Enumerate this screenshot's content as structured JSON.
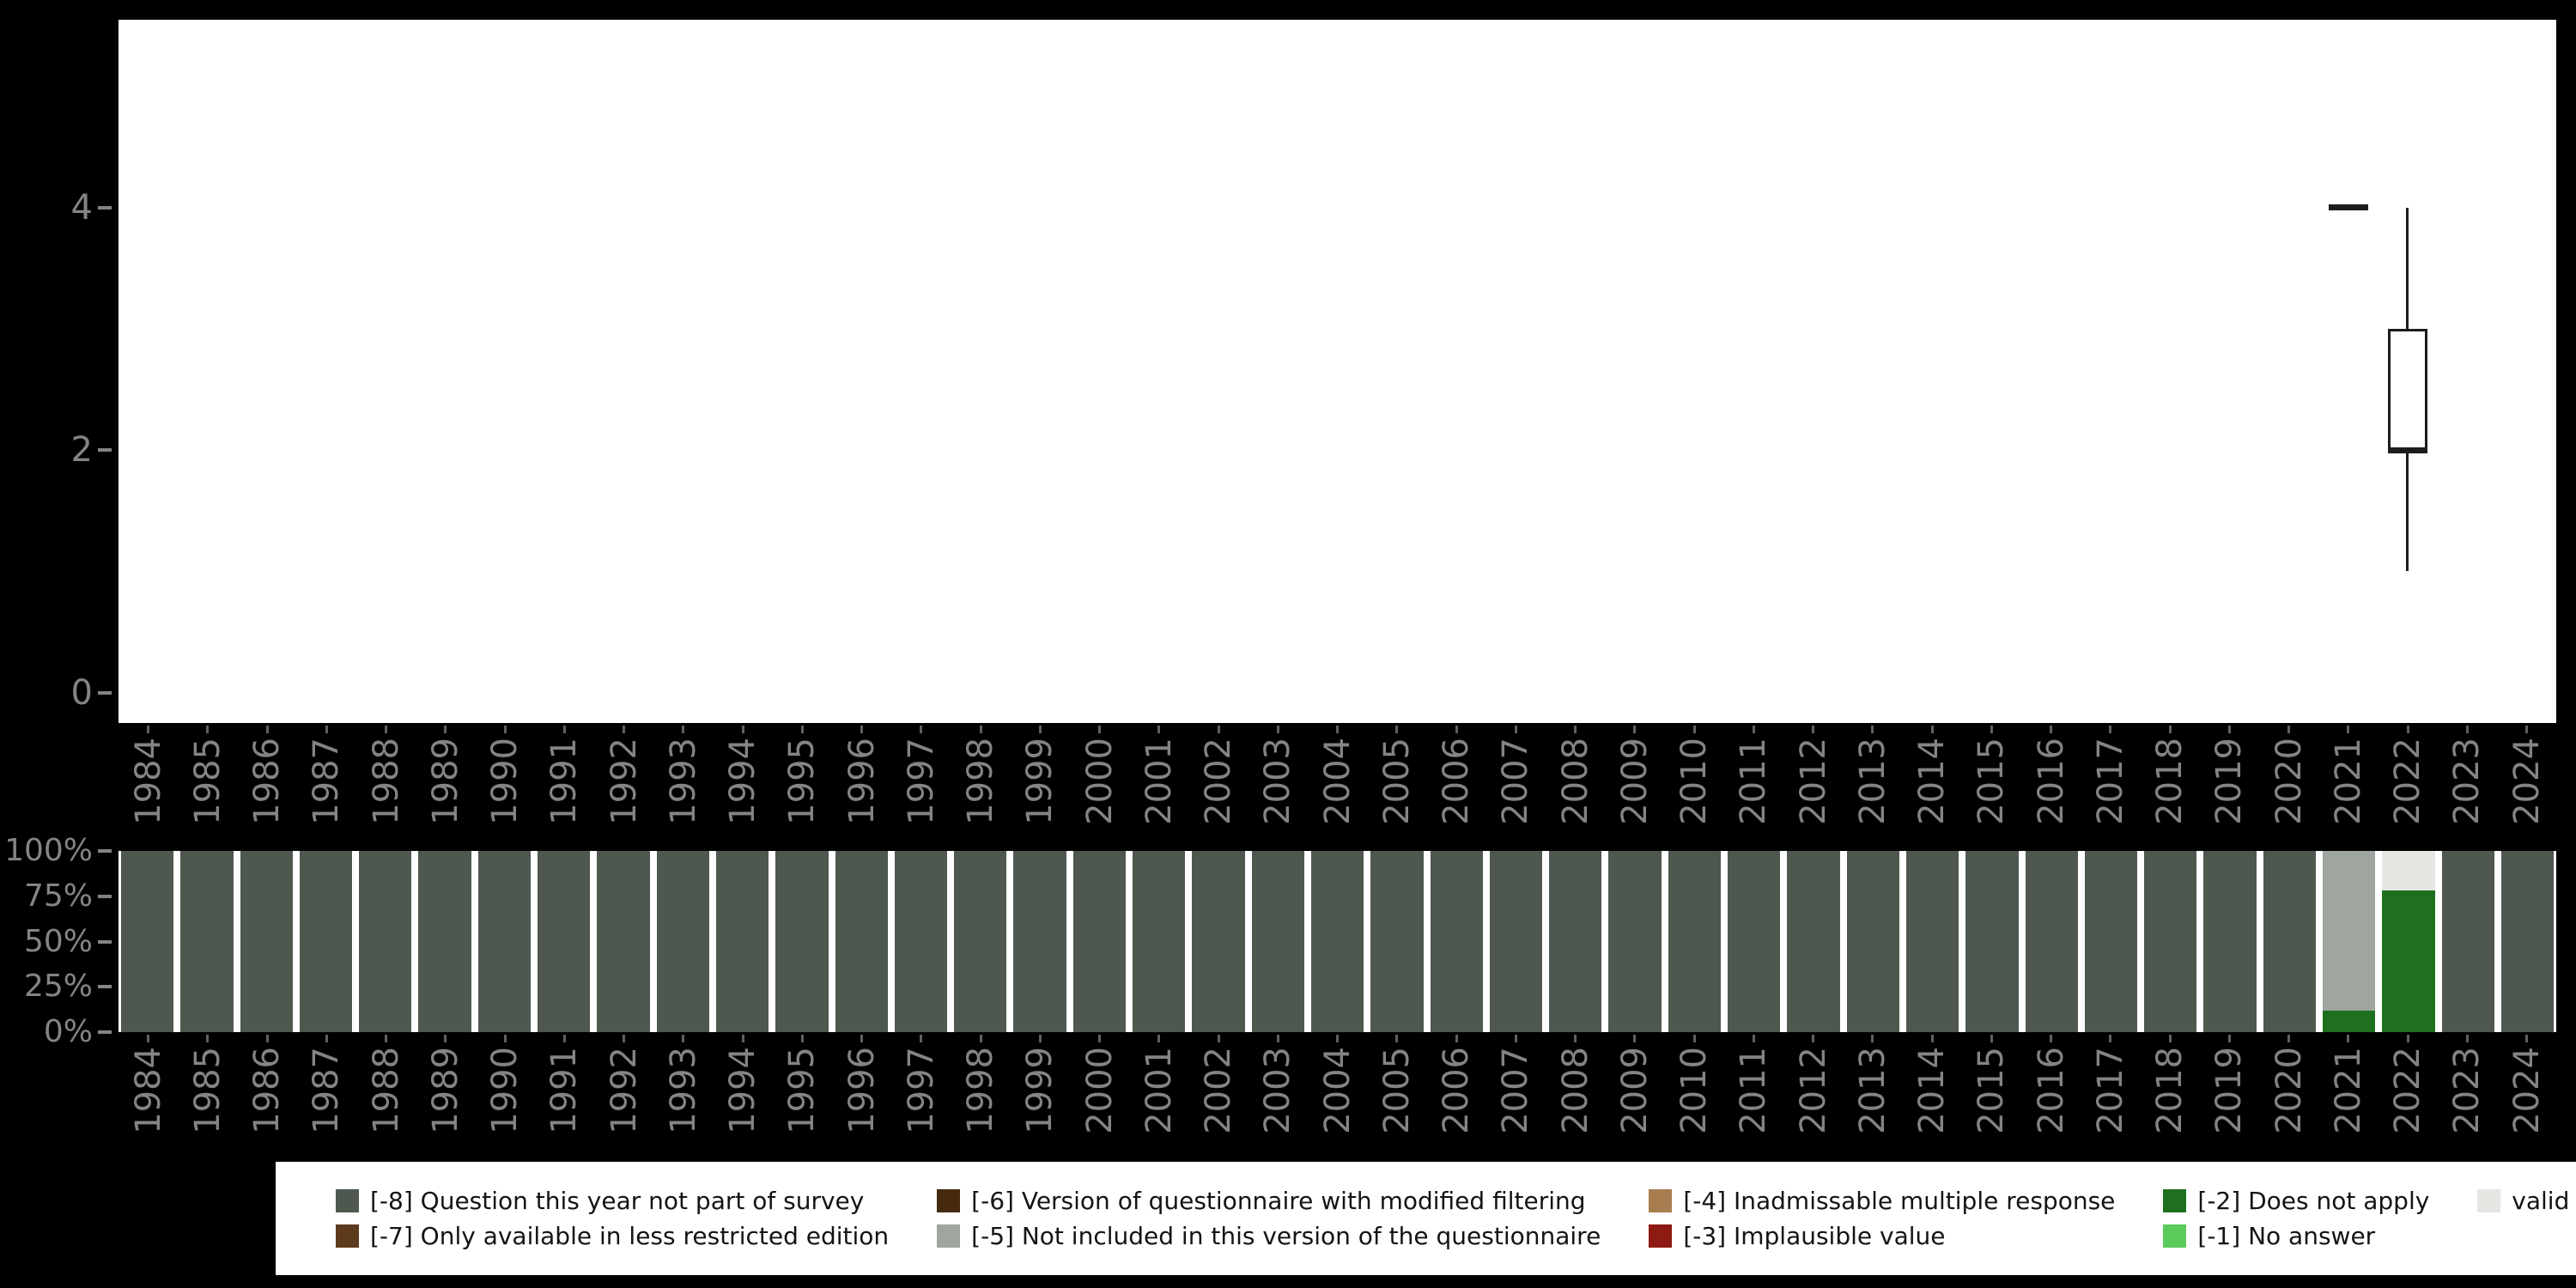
{
  "colors": {
    "background": "#000000",
    "panel": "#ffffff",
    "axis_text": "#848484",
    "box_stroke": "#1c1c1c",
    "-8": "#4e584f",
    "-7": "#5e3a1c",
    "-6": "#452a10",
    "-5": "#9fa69f",
    "-4": "#a87e50",
    "-3": "#8e1b13",
    "-2": "#1e701e",
    "-1": "#5bcb5b",
    "valid": "#e4e7e2"
  },
  "chart_data": [
    {
      "type": "boxplot",
      "title": "",
      "xlabel": "",
      "ylabel": "",
      "grid": false,
      "ylim": [
        -0.25,
        5.55
      ],
      "x_categories": [
        "1984",
        "1985",
        "1986",
        "1987",
        "1988",
        "1989",
        "1990",
        "1991",
        "1992",
        "1993",
        "1994",
        "1995",
        "1996",
        "1997",
        "1998",
        "1999",
        "2000",
        "2001",
        "2002",
        "2003",
        "2004",
        "2005",
        "2006",
        "2007",
        "2008",
        "2009",
        "2010",
        "2011",
        "2012",
        "2013",
        "2014",
        "2015",
        "2016",
        "2017",
        "2018",
        "2019",
        "2020",
        "2021",
        "2022",
        "2023",
        "2024"
      ],
      "yticks": [
        {
          "value": 4,
          "label": "4"
        },
        {
          "value": 2,
          "label": "2"
        },
        {
          "value": 0,
          "label": "0"
        }
      ],
      "series": [
        {
          "x": "2021",
          "min": 4,
          "q1": 4,
          "median": 4,
          "q3": 4,
          "max": 4
        },
        {
          "x": "2022",
          "min": 1,
          "q1": 2,
          "median": 2,
          "q3": 3,
          "max": 4
        }
      ]
    },
    {
      "type": "stacked-bar-percent",
      "title": "",
      "xlabel": "",
      "ylabel": "",
      "grid": false,
      "x_categories": [
        "1984",
        "1985",
        "1986",
        "1987",
        "1988",
        "1989",
        "1990",
        "1991",
        "1992",
        "1993",
        "1994",
        "1995",
        "1996",
        "1997",
        "1998",
        "1999",
        "2000",
        "2001",
        "2002",
        "2003",
        "2004",
        "2005",
        "2006",
        "2007",
        "2008",
        "2009",
        "2010",
        "2011",
        "2012",
        "2013",
        "2014",
        "2015",
        "2016",
        "2017",
        "2018",
        "2019",
        "2020",
        "2021",
        "2022",
        "2023",
        "2024"
      ],
      "yticks": [
        {
          "value": 100,
          "label": "100%"
        },
        {
          "value": 75,
          "label": "75%"
        },
        {
          "value": 50,
          "label": "50%"
        },
        {
          "value": 25,
          "label": "25%"
        },
        {
          "value": 0,
          "label": "0%"
        }
      ],
      "default_segments": [
        {
          "code": "-8",
          "pct": 100
        }
      ],
      "bars_override": {
        "2021": [
          {
            "code": "-2",
            "pct": 12
          },
          {
            "code": "-5",
            "pct": 88
          }
        ],
        "2022": [
          {
            "code": "-2",
            "pct": 78
          },
          {
            "code": "valid",
            "pct": 22
          }
        ]
      }
    }
  ],
  "legend": {
    "rows": [
      [
        {
          "code": "-8",
          "label": "[-8] Question this year not part of survey"
        },
        {
          "code": "-6",
          "label": "[-6] Version of questionnaire with modified filtering"
        },
        {
          "code": "-4",
          "label": "[-4] Inadmissable multiple response"
        },
        {
          "code": "-2",
          "label": "[-2] Does not apply"
        },
        {
          "code": "valid",
          "label": "valid cases"
        }
      ],
      [
        {
          "code": "-7",
          "label": "[-7] Only available in less restricted edition"
        },
        {
          "code": "-5",
          "label": "[-5] Not included in this version of the questionnaire"
        },
        {
          "code": "-3",
          "label": "[-3] Implausible value"
        },
        {
          "code": "-1",
          "label": "[-1] No answer"
        }
      ]
    ]
  }
}
